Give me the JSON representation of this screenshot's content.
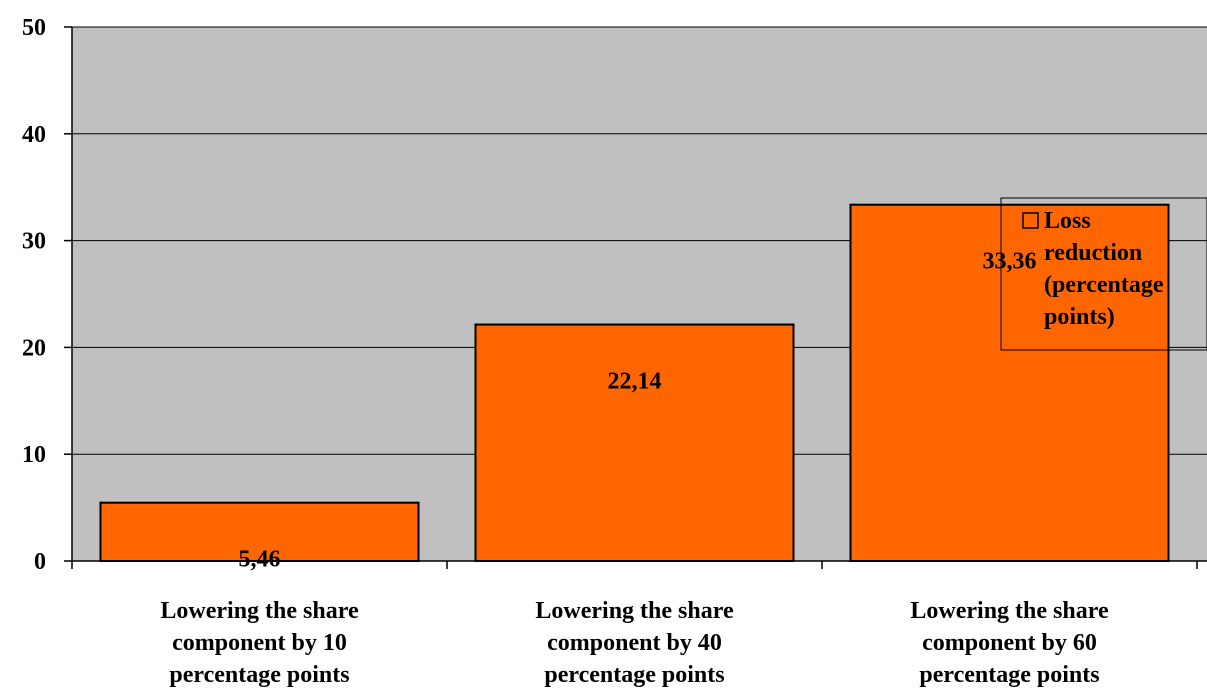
{
  "chart_data": {
    "type": "bar",
    "categories": [
      "Lowering the share component by 10 percentage points",
      "Lowering the share component by 40 percentage points",
      "Lowering the share component by 60 percentage points"
    ],
    "category_lines": [
      [
        "Lowering the share",
        "component by 10",
        "percentage points"
      ],
      [
        "Lowering the share",
        "component by 40",
        "percentage points"
      ],
      [
        "Lowering the share",
        "component by 60",
        "percentage points"
      ]
    ],
    "series": [
      {
        "name": "Loss reduction (percentage points)",
        "name_lines": [
          "Loss",
          "reduction",
          "(percentage",
          "points)"
        ],
        "values": [
          5.46,
          22.14,
          33.36
        ],
        "data_labels": [
          "5,46",
          "22,14",
          "33,36"
        ],
        "color": "#ff6600"
      }
    ],
    "ylim": [
      0,
      50
    ],
    "yticks": [
      0,
      10,
      20,
      30,
      40,
      50
    ],
    "grid": true,
    "plot_background": "#c0c0c0",
    "legend_position": "right",
    "title": "",
    "xlabel": "",
    "ylabel": ""
  }
}
